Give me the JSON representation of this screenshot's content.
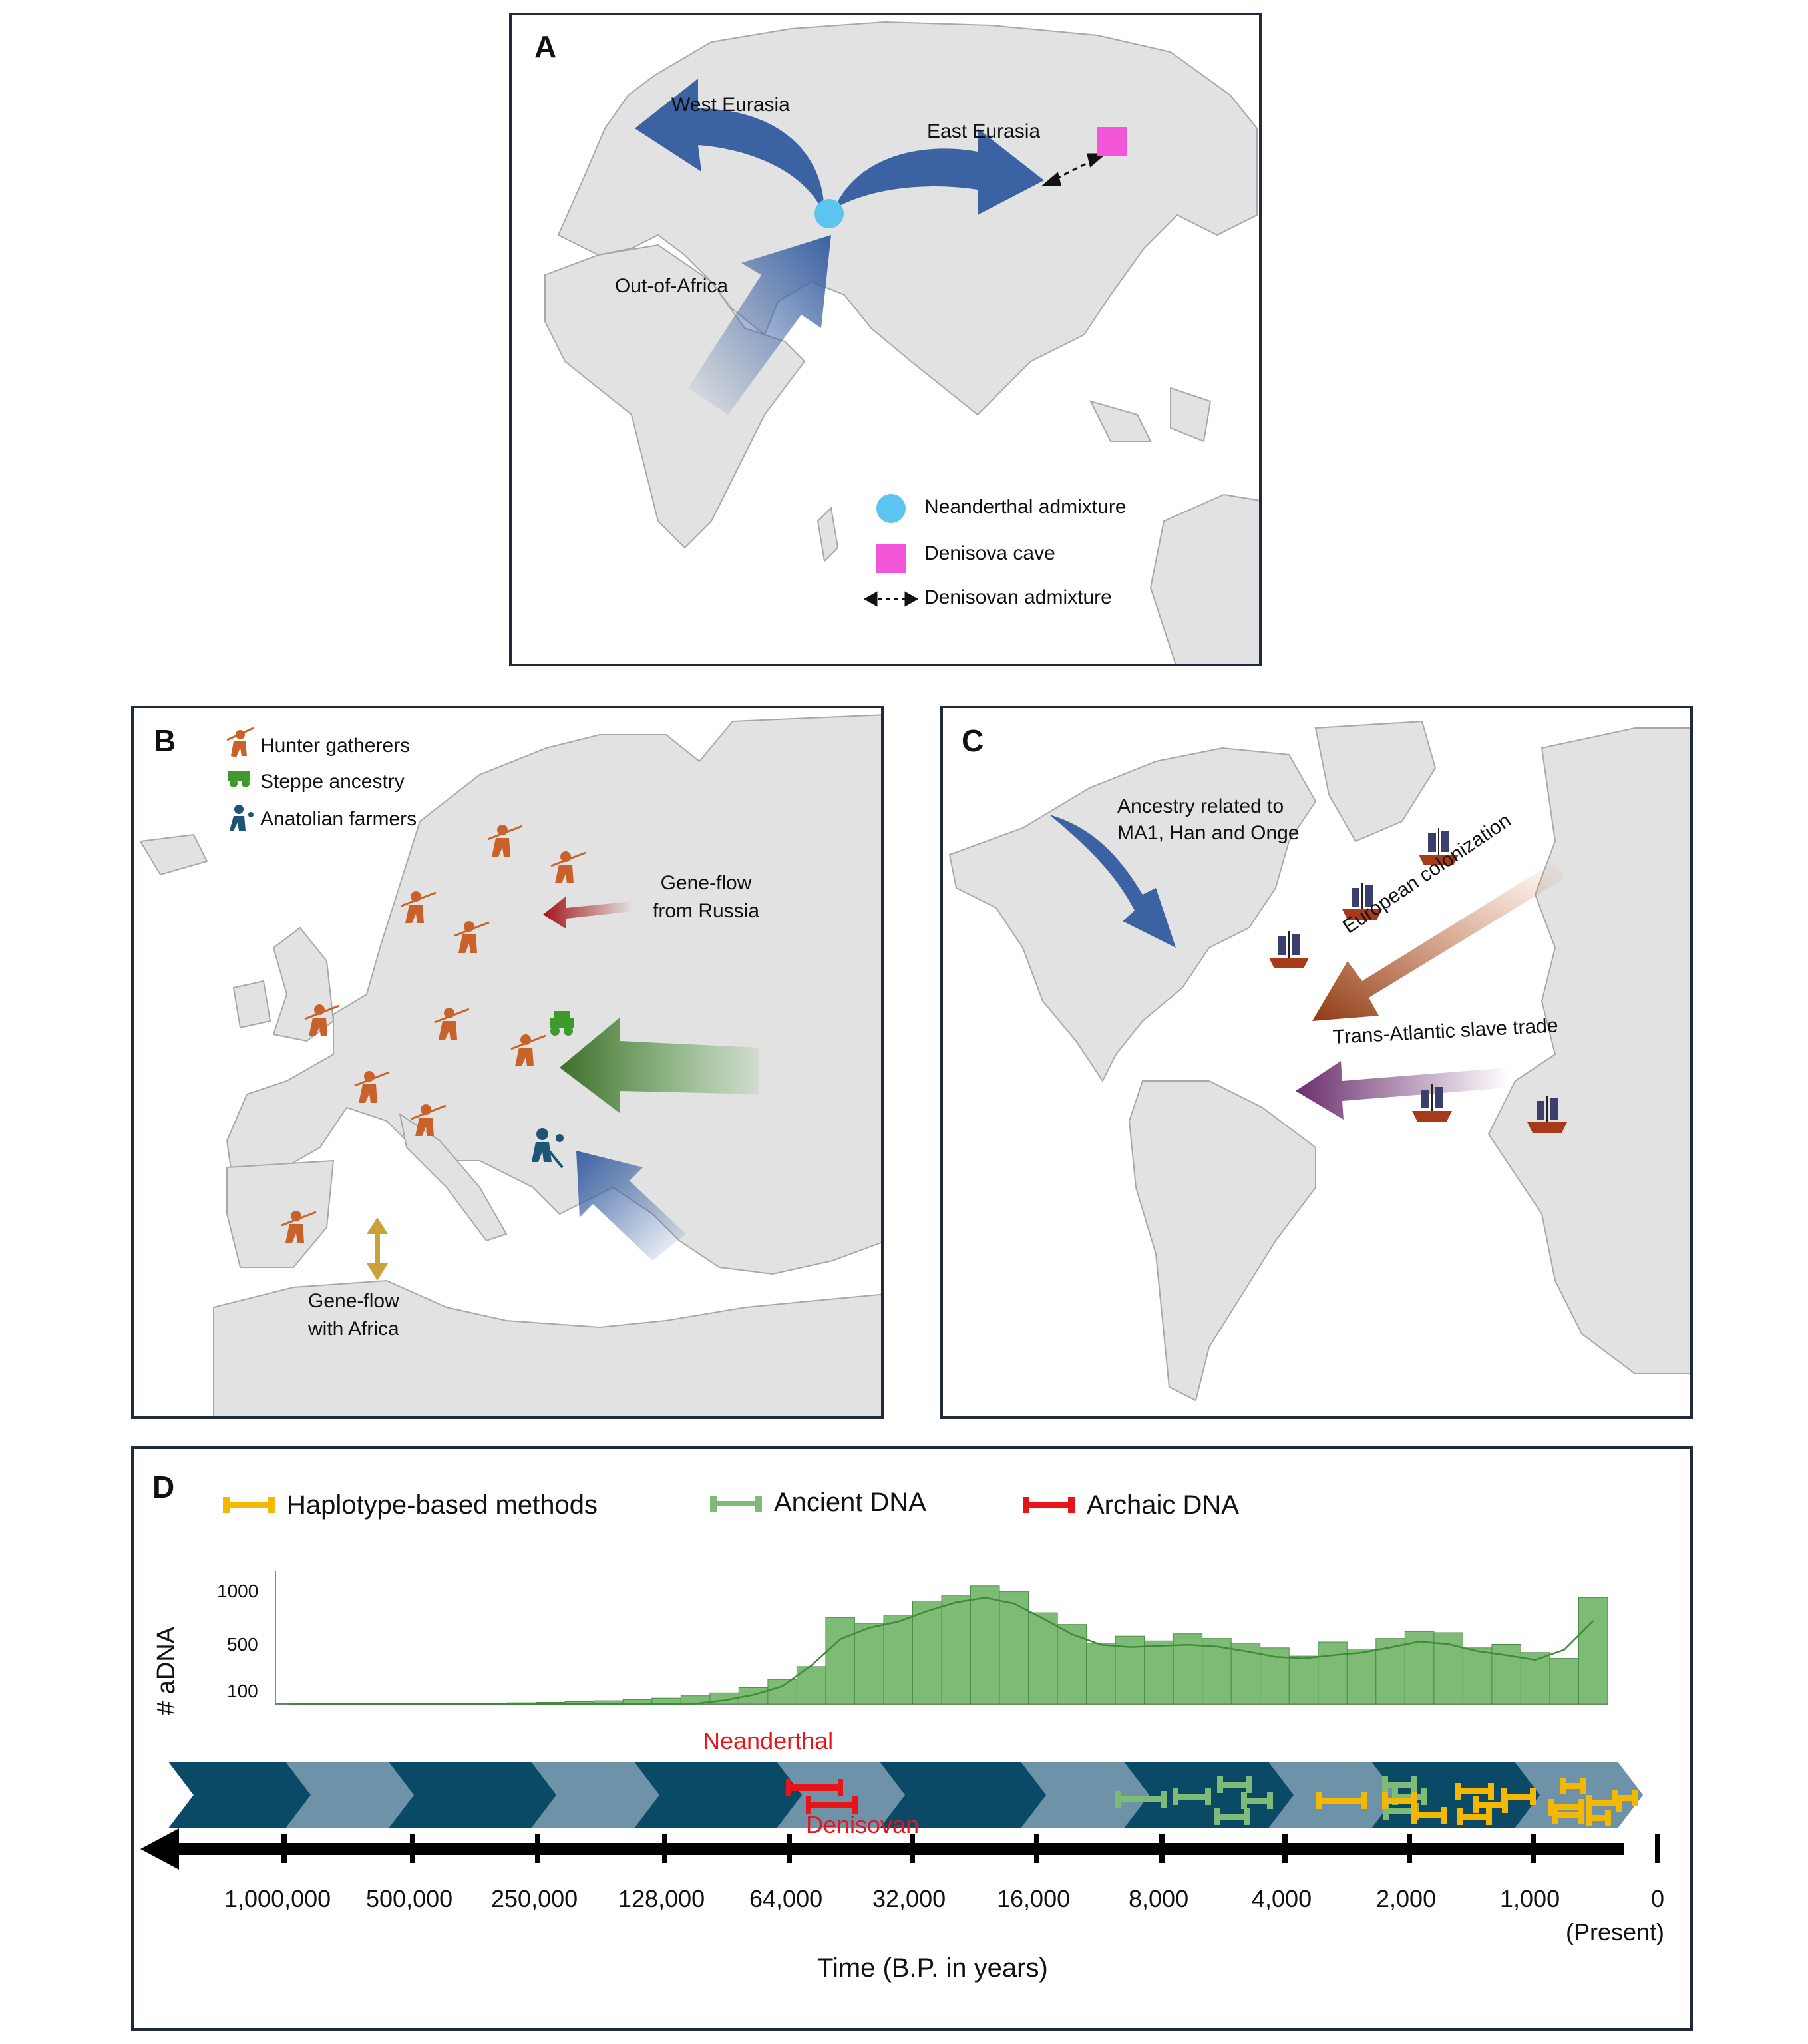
{
  "panel_a": {
    "letter": "A",
    "labels": {
      "west_eurasia": "West Eurasia",
      "east_eurasia": "East Eurasia",
      "out_of_africa": "Out-of-Africa"
    },
    "legend": [
      {
        "label": "Neanderthal admixture",
        "color": "#5bc4ef",
        "icon": "circle-icon"
      },
      {
        "label": "Denisova cave",
        "color": "#f255d8",
        "icon": "square-icon"
      },
      {
        "label": "Denisovan admixture",
        "color": "#111111",
        "icon": "double-arrow-icon"
      }
    ]
  },
  "panel_b": {
    "letter": "B",
    "legend": [
      {
        "label": "Hunter gatherers",
        "color": "#c8622a",
        "icon": "hunter-icon"
      },
      {
        "label": "Steppe ancestry",
        "color": "#3e9a2d",
        "icon": "chariot-icon"
      },
      {
        "label": "Anatolian farmers",
        "color": "#1d5577",
        "icon": "farmer-icon"
      }
    ],
    "labels": {
      "gene_flow_russia": [
        "Gene-flow",
        "from Russia"
      ],
      "gene_flow_africa": [
        "Gene-flow",
        "with Africa"
      ]
    }
  },
  "panel_c": {
    "letter": "C",
    "labels": {
      "ancestry": [
        "Ancestry related to",
        "MA1, Han and Onge"
      ],
      "european_colonization": "European colonization",
      "slave_trade": "Trans-Atlantic slave trade"
    }
  },
  "panel_d": {
    "letter": "D",
    "legend": [
      {
        "label": "Haplotype-based methods",
        "color": "#f5b800"
      },
      {
        "label": "Ancient DNA",
        "color": "#7dbb76"
      },
      {
        "label": "Archaic DNA",
        "color": "#e8141a"
      }
    ],
    "neanderthal_label": "Neanderthal",
    "denisovan_label": "Denisovan",
    "axis_label": "Time (B.P. in years)",
    "present_label": "(Present)",
    "ticks": [
      "1,000,000",
      "500,000",
      "250,000",
      "128,000",
      "64,000",
      "32,000",
      "16,000",
      "8,000",
      "4,000",
      "2,000",
      "1,000",
      "0"
    ]
  },
  "chart_data": {
    "type": "bar",
    "ylabel": "# aDNA",
    "yticks": [
      "1000",
      "500",
      "100"
    ],
    "values": [
      2,
      2,
      2,
      3,
      3,
      4,
      5,
      7,
      10,
      14,
      20,
      28,
      38,
      50,
      70,
      95,
      140,
      210,
      320,
      740,
      690,
      760,
      880,
      930,
      1010,
      960,
      780,
      680,
      520,
      580,
      540,
      600,
      560,
      520,
      480,
      410,
      530,
      470,
      560,
      620,
      610,
      480,
      510,
      440,
      390,
      910
    ],
    "ylim": [
      0,
      1100
    ],
    "colors": {
      "bars": "#7dbb76",
      "bar_edge": "#4d8e47",
      "line": "#3f8a39"
    }
  },
  "colors": {
    "land": "#e2e2e2",
    "border": "#a8a8a8",
    "blue_arrow": "#3b62a3",
    "green_arrow": "#3f6d2a",
    "red_arrow": "#a4161a",
    "brown_arrow": "#8f3a13",
    "purple_arrow": "#6b2f6f",
    "timeline_dark": "#0a4a66",
    "timeline_light": "#6e93a8"
  }
}
